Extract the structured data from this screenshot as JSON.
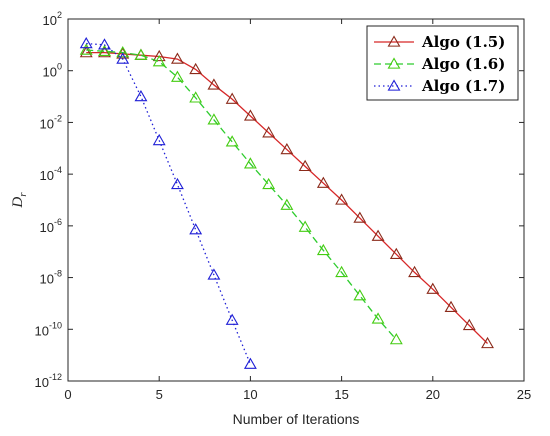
{
  "chart_data": {
    "type": "line",
    "xlabel": "Number of Iterations",
    "ylabel": "D",
    "ylabel_sub": "r",
    "xlim": [
      0,
      25
    ],
    "ylim_log10": [
      -12,
      2
    ],
    "yscale": "log",
    "grid": false,
    "legend_position": "top-right",
    "x_ticks": [
      0,
      5,
      10,
      15,
      20,
      25
    ],
    "y_tick_exponents": [
      -12,
      -10,
      -8,
      -6,
      -4,
      -2,
      0,
      2
    ],
    "y_tick_base": "10",
    "series": [
      {
        "name": "Algo (1.5)",
        "color": "#d62728",
        "marker_color": "#8b2a1a",
        "line_style": "solid",
        "x": [
          1,
          2,
          3,
          4,
          5,
          6,
          7,
          8,
          9,
          10,
          11,
          12,
          13,
          14,
          15,
          16,
          17,
          18,
          19,
          20,
          21,
          22,
          23
        ],
        "y_log10": [
          0.7,
          0.7,
          0.65,
          0.6,
          0.55,
          0.45,
          0.05,
          -0.55,
          -1.1,
          -1.75,
          -2.4,
          -3.05,
          -3.7,
          -4.35,
          -5.0,
          -5.7,
          -6.4,
          -7.1,
          -7.8,
          -8.45,
          -9.15,
          -9.85,
          -10.55
        ]
      },
      {
        "name": "Algo (1.6)",
        "color": "#2ecc2e",
        "marker_color": "#44cc11",
        "line_style": "dashed",
        "x": [
          1,
          2,
          3,
          4,
          5,
          6,
          7,
          8,
          9,
          10,
          11,
          12,
          13,
          14,
          15,
          16,
          17,
          18
        ],
        "y_log10": [
          0.8,
          0.75,
          0.7,
          0.6,
          0.35,
          -0.25,
          -1.05,
          -1.9,
          -2.75,
          -3.6,
          -4.4,
          -5.2,
          -6.05,
          -6.95,
          -7.8,
          -8.7,
          -9.6,
          -10.4
        ]
      },
      {
        "name": "Algo (1.7)",
        "color": "#1f1fd6",
        "marker_color": "#1f1fd6",
        "line_style": "dotted",
        "x": [
          1,
          2,
          3,
          4,
          5,
          6,
          7,
          8,
          9,
          10
        ],
        "y_log10": [
          1.05,
          1.0,
          0.45,
          -1.0,
          -2.7,
          -4.4,
          -6.15,
          -7.9,
          -9.65,
          -11.35
        ]
      }
    ]
  }
}
